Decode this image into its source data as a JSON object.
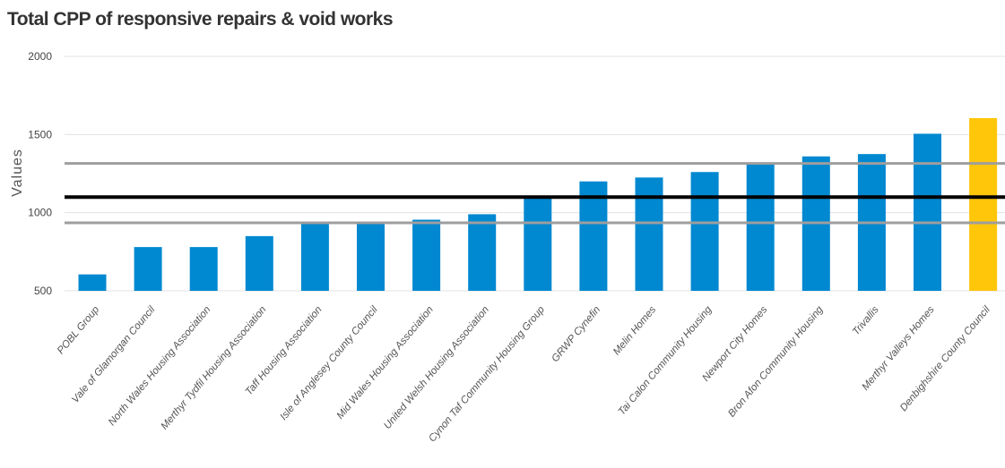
{
  "chart_data": {
    "type": "bar",
    "title": "Total CPP of responsive repairs & void works",
    "xlabel": "",
    "ylabel": "Values",
    "ylim": [
      500,
      2000
    ],
    "yticks": [
      500,
      1000,
      1500,
      2000
    ],
    "grid": true,
    "categories": [
      "POBL Group",
      "Vale of Glamorgan Council",
      "North Wales Housing Association",
      "Merthyr Tydfil Housing Association",
      "Taff Housing Association",
      "Isle of Anglesey County Council",
      "Mid Wales Housing Association",
      "United Welsh Housing Association",
      "Cynon Taf Community Housing Group",
      "GRWP Cynefin",
      "Melin Homes",
      "Tai Calon Community Housing",
      "Newport City Homes",
      "Bron Afon Community Housing",
      "Trivallis",
      "Merthyr Valleys Homes",
      "Denbighshire County Council"
    ],
    "values": [
      605,
      780,
      780,
      850,
      940,
      935,
      955,
      990,
      1110,
      1200,
      1225,
      1260,
      1320,
      1360,
      1375,
      1505,
      1605
    ],
    "highlight_index": 16,
    "reference_lines": [
      {
        "kind": "median",
        "value": 1100,
        "color": "#000000"
      },
      {
        "kind": "upper-quartile",
        "value": 1315,
        "color": "#9e9e9e"
      },
      {
        "kind": "lower-quartile",
        "value": 935,
        "color": "#9e9e9e"
      }
    ]
  },
  "colors": {
    "bar": "#0088d1",
    "highlight": "#ffc60a",
    "grid": "#e3e3e3"
  }
}
